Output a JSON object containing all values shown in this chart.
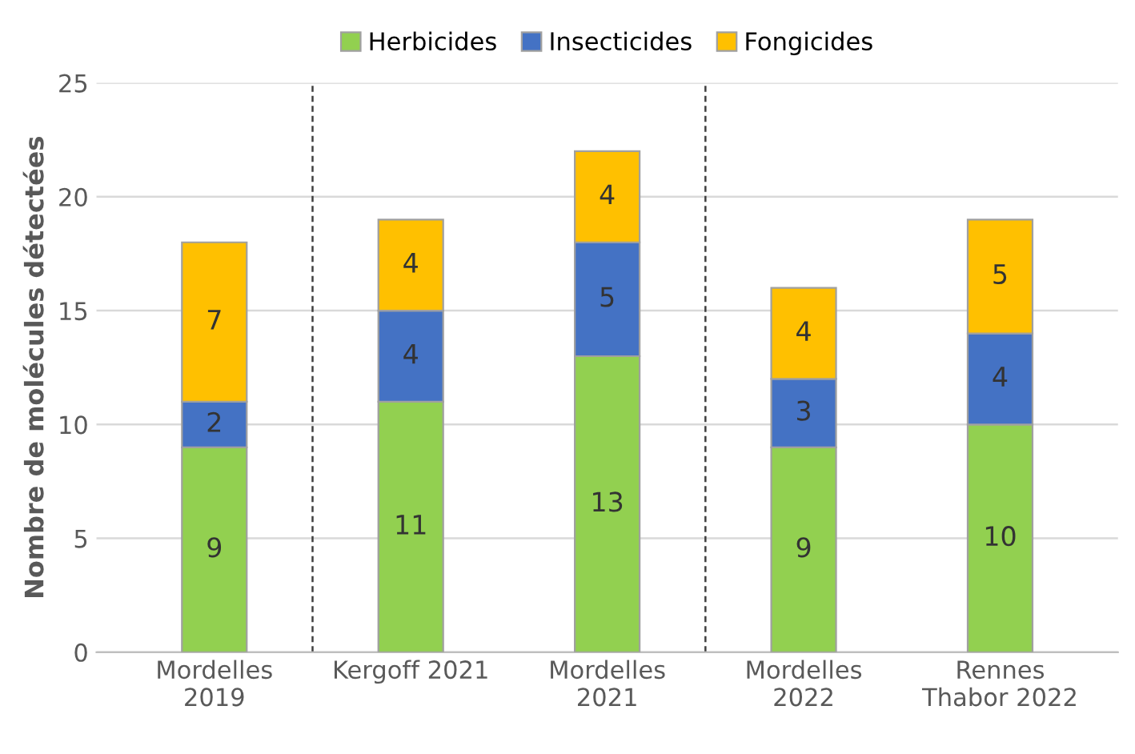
{
  "chart_data": {
    "type": "bar",
    "stacked": true,
    "ylabel": "Nombre de molécules détectées",
    "categories": [
      "Mordelles\n2019",
      "Kergoff 2021",
      "Mordelles\n2021",
      "Mordelles\n2022",
      "Rennes\nThabor 2022"
    ],
    "series": [
      {
        "name": "Herbicides",
        "color": "#92d050",
        "values": [
          9,
          11,
          13,
          9,
          10
        ]
      },
      {
        "name": "Insecticides",
        "color": "#4472c4",
        "values": [
          2,
          4,
          5,
          3,
          4
        ]
      },
      {
        "name": "Fongicides",
        "color": "#ffc000",
        "values": [
          7,
          4,
          4,
          4,
          5
        ]
      }
    ],
    "ylim": [
      0,
      25
    ],
    "yticks": [
      0,
      5,
      10,
      15,
      20,
      25
    ],
    "grid": "y",
    "legend": "top",
    "data_labels": true
  }
}
